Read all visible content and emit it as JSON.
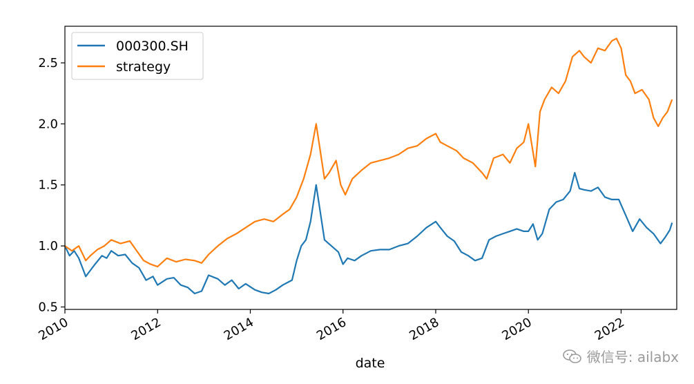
{
  "chart_data": {
    "type": "line",
    "title": "",
    "xlabel": "date",
    "ylabel": "",
    "xlim": [
      2010.0,
      2023.2
    ],
    "ylim": [
      0.48,
      2.8
    ],
    "x_ticks": [
      2010,
      2012,
      2014,
      2016,
      2018,
      2020,
      2022
    ],
    "x_tick_labels": [
      "2010",
      "2012",
      "2014",
      "2016",
      "2018",
      "2020",
      "2022"
    ],
    "y_ticks": [
      0.5,
      1.0,
      1.5,
      2.0,
      2.5
    ],
    "y_tick_labels": [
      "0.5",
      "1.0",
      "1.5",
      "2.0",
      "2.5"
    ],
    "legend_position": "top-left",
    "grid": false,
    "series": [
      {
        "name": "000300.SH",
        "color": "#1f77b4",
        "x": [
          2010.0,
          2010.1,
          2010.2,
          2010.3,
          2010.45,
          2010.55,
          2010.65,
          2010.8,
          2010.9,
          2011.0,
          2011.15,
          2011.3,
          2011.45,
          2011.6,
          2011.75,
          2011.9,
          2012.0,
          2012.2,
          2012.35,
          2012.5,
          2012.65,
          2012.8,
          2012.95,
          2013.1,
          2013.3,
          2013.45,
          2013.6,
          2013.75,
          2013.9,
          2014.1,
          2014.25,
          2014.4,
          2014.55,
          2014.7,
          2014.8,
          2014.9,
          2015.0,
          2015.1,
          2015.2,
          2015.3,
          2015.42,
          2015.5,
          2015.6,
          2015.75,
          2015.9,
          2016.0,
          2016.1,
          2016.25,
          2016.4,
          2016.6,
          2016.8,
          2017.0,
          2017.2,
          2017.4,
          2017.6,
          2017.8,
          2018.0,
          2018.1,
          2018.25,
          2018.4,
          2018.55,
          2018.7,
          2018.85,
          2019.0,
          2019.15,
          2019.3,
          2019.45,
          2019.6,
          2019.75,
          2019.9,
          2020.0,
          2020.1,
          2020.2,
          2020.3,
          2020.45,
          2020.6,
          2020.75,
          2020.9,
          2021.0,
          2021.1,
          2021.2,
          2021.35,
          2021.5,
          2021.65,
          2021.8,
          2021.95,
          2022.1,
          2022.25,
          2022.4,
          2022.55,
          2022.7,
          2022.85,
          2022.95,
          2023.05,
          2023.1
        ],
        "values": [
          1.0,
          0.92,
          0.96,
          0.9,
          0.75,
          0.8,
          0.85,
          0.92,
          0.9,
          0.96,
          0.92,
          0.93,
          0.86,
          0.82,
          0.72,
          0.75,
          0.68,
          0.73,
          0.74,
          0.68,
          0.66,
          0.61,
          0.63,
          0.76,
          0.73,
          0.68,
          0.72,
          0.65,
          0.69,
          0.64,
          0.62,
          0.61,
          0.64,
          0.68,
          0.7,
          0.72,
          0.88,
          1.0,
          1.05,
          1.2,
          1.5,
          1.3,
          1.05,
          1.0,
          0.95,
          0.85,
          0.9,
          0.88,
          0.92,
          0.96,
          0.97,
          0.97,
          1.0,
          1.02,
          1.08,
          1.15,
          1.2,
          1.15,
          1.08,
          1.04,
          0.95,
          0.92,
          0.88,
          0.9,
          1.05,
          1.08,
          1.1,
          1.12,
          1.14,
          1.12,
          1.12,
          1.18,
          1.05,
          1.1,
          1.3,
          1.36,
          1.38,
          1.45,
          1.6,
          1.47,
          1.46,
          1.45,
          1.48,
          1.4,
          1.38,
          1.38,
          1.25,
          1.12,
          1.22,
          1.15,
          1.1,
          1.02,
          1.07,
          1.13,
          1.19
        ]
      },
      {
        "name": "strategy",
        "color": "#ff7f0e",
        "x": [
          2010.0,
          2010.15,
          2010.3,
          2010.45,
          2010.55,
          2010.7,
          2010.85,
          2011.0,
          2011.2,
          2011.4,
          2011.55,
          2011.7,
          2011.85,
          2012.0,
          2012.2,
          2012.4,
          2012.6,
          2012.8,
          2012.95,
          2013.1,
          2013.3,
          2013.5,
          2013.7,
          2013.9,
          2014.1,
          2014.3,
          2014.5,
          2014.7,
          2014.85,
          2015.0,
          2015.15,
          2015.3,
          2015.42,
          2015.5,
          2015.6,
          2015.7,
          2015.85,
          2015.95,
          2016.05,
          2016.2,
          2016.4,
          2016.6,
          2016.8,
          2017.0,
          2017.2,
          2017.4,
          2017.6,
          2017.8,
          2018.0,
          2018.1,
          2018.25,
          2018.45,
          2018.6,
          2018.8,
          2019.0,
          2019.1,
          2019.25,
          2019.45,
          2019.6,
          2019.75,
          2019.9,
          2020.0,
          2020.15,
          2020.25,
          2020.35,
          2020.5,
          2020.65,
          2020.8,
          2020.95,
          2021.1,
          2021.2,
          2021.35,
          2021.5,
          2021.65,
          2021.8,
          2021.9,
          2022.0,
          2022.1,
          2022.2,
          2022.3,
          2022.45,
          2022.6,
          2022.7,
          2022.8,
          2022.9,
          2023.0,
          2023.1
        ],
        "values": [
          1.0,
          0.96,
          1.0,
          0.88,
          0.92,
          0.97,
          1.0,
          1.05,
          1.02,
          1.04,
          0.96,
          0.88,
          0.85,
          0.83,
          0.9,
          0.87,
          0.89,
          0.88,
          0.86,
          0.93,
          1.0,
          1.06,
          1.1,
          1.15,
          1.2,
          1.22,
          1.2,
          1.26,
          1.3,
          1.4,
          1.55,
          1.75,
          2.0,
          1.8,
          1.55,
          1.6,
          1.7,
          1.5,
          1.42,
          1.55,
          1.62,
          1.68,
          1.7,
          1.72,
          1.75,
          1.8,
          1.82,
          1.88,
          1.92,
          1.85,
          1.82,
          1.78,
          1.72,
          1.68,
          1.6,
          1.55,
          1.72,
          1.75,
          1.68,
          1.8,
          1.85,
          2.0,
          1.65,
          2.1,
          2.2,
          2.3,
          2.25,
          2.35,
          2.55,
          2.6,
          2.55,
          2.5,
          2.62,
          2.6,
          2.68,
          2.7,
          2.62,
          2.4,
          2.35,
          2.25,
          2.28,
          2.2,
          2.05,
          1.98,
          2.05,
          2.1,
          2.2
        ]
      }
    ]
  },
  "watermark": {
    "text": "微信号: ailabx"
  }
}
